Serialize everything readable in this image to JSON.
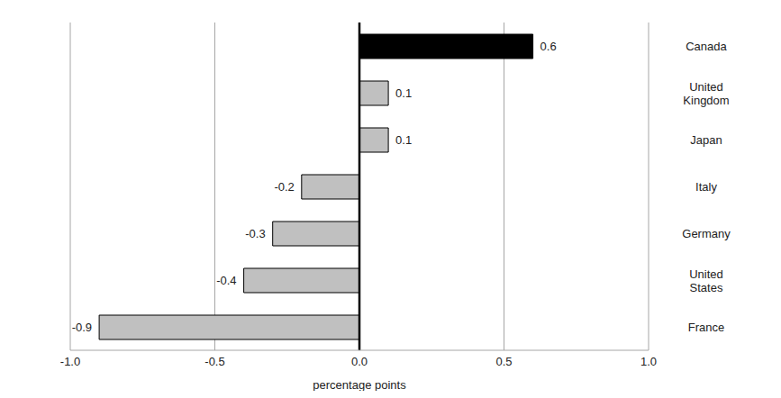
{
  "chart_data": {
    "type": "bar",
    "orientation": "horizontal",
    "categories": [
      "Canada",
      "United Kingdom",
      "Japan",
      "Italy",
      "Germany",
      "United States",
      "France"
    ],
    "values": [
      0.6,
      0.1,
      0.1,
      -0.2,
      -0.3,
      -0.4,
      -0.9
    ],
    "colors": [
      "#000000",
      "#c0c0c0",
      "#c0c0c0",
      "#c0c0c0",
      "#c0c0c0",
      "#c0c0c0",
      "#c0c0c0"
    ],
    "xlabel": "percentage points",
    "xlim": [
      -1,
      1
    ],
    "xticks": [
      {
        "value": -1,
        "label": "-1.0"
      },
      {
        "value": -0.5,
        "label": "-0.5"
      },
      {
        "value": 0,
        "label": "0.0"
      },
      {
        "value": 0.5,
        "label": "0.5"
      },
      {
        "value": 1,
        "label": "1.0"
      }
    ],
    "grid": true,
    "data_labels": true
  }
}
